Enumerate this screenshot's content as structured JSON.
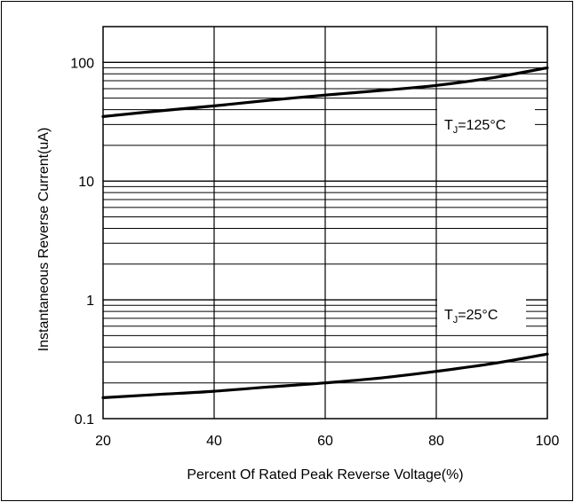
{
  "chart_data": {
    "type": "line",
    "title": "",
    "xlabel": "Percent Of Rated Peak Reverse Voltage(%)",
    "ylabel": "Instantaneous Reverse Current(uA)",
    "xlim": [
      20,
      100
    ],
    "ylim": [
      0.1,
      200
    ],
    "yscale": "log",
    "grid": true,
    "x_ticks": [
      20,
      40,
      60,
      80,
      100
    ],
    "y_ticks": [
      0.1,
      1,
      10,
      100
    ],
    "x_tick_labels": [
      "20",
      "40",
      "60",
      "80",
      "100"
    ],
    "y_tick_labels": [
      "0.1",
      "1",
      "10",
      "100"
    ],
    "series": [
      {
        "name": "125°C",
        "x": [
          20,
          30,
          40,
          50,
          60,
          70,
          80,
          90,
          100
        ],
        "y": [
          35,
          39,
          43,
          48,
          53,
          58,
          64,
          74,
          90
        ]
      },
      {
        "name": "25°C",
        "x": [
          20,
          30,
          40,
          50,
          60,
          70,
          80,
          90,
          100
        ],
        "y": [
          0.15,
          0.16,
          0.17,
          0.185,
          0.2,
          0.22,
          0.25,
          0.29,
          0.35
        ]
      }
    ],
    "annotations": [
      {
        "base": "T",
        "sub": "J",
        "rest": "=125°C"
      },
      {
        "base": "T",
        "sub": "J",
        "rest": "=25°C"
      }
    ],
    "colors": {
      "line": "#000000",
      "grid": "#000000",
      "background": "#ffffff"
    }
  }
}
